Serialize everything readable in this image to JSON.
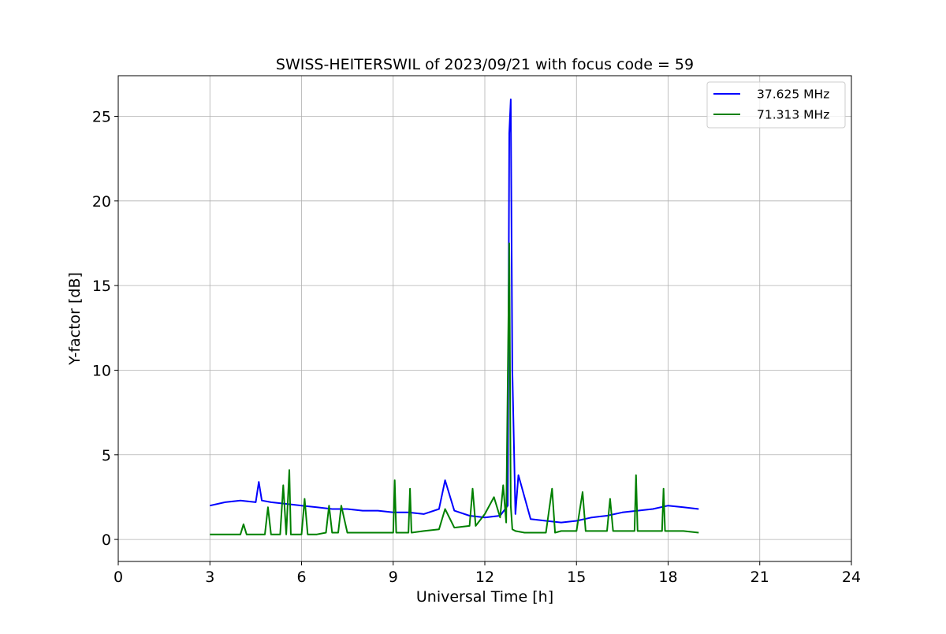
{
  "chart_data": {
    "type": "line",
    "title": "SWISS-HEITERSWIL of 2023/09/21 with focus code = 59",
    "xlabel": "Universal Time [h]",
    "ylabel": "Y-factor [dB]",
    "xlim": [
      0,
      24
    ],
    "ylim": [
      -1.3,
      27.4
    ],
    "xticks": [
      0,
      3,
      6,
      9,
      12,
      15,
      18,
      21,
      24
    ],
    "yticks": [
      0,
      5,
      10,
      15,
      20,
      25
    ],
    "grid": true,
    "legend_position": "top-right",
    "series": [
      {
        "name": "37.625 MHz",
        "color": "#0000ff",
        "x": [
          3.0,
          3.5,
          4.0,
          4.5,
          4.6,
          4.7,
          5.0,
          5.5,
          6.0,
          6.5,
          7.0,
          7.5,
          8.0,
          8.5,
          9.0,
          9.5,
          10.0,
          10.5,
          10.7,
          11.0,
          11.5,
          12.0,
          12.5,
          12.75,
          12.8,
          12.85,
          12.9,
          13.0,
          13.1,
          13.5,
          14.0,
          14.5,
          15.0,
          15.5,
          16.0,
          16.5,
          17.0,
          17.5,
          18.0,
          18.5,
          19.0
        ],
        "y": [
          2.0,
          2.2,
          2.3,
          2.2,
          3.4,
          2.3,
          2.2,
          2.1,
          2.0,
          1.9,
          1.8,
          1.8,
          1.7,
          1.7,
          1.6,
          1.6,
          1.5,
          1.8,
          3.5,
          1.7,
          1.4,
          1.3,
          1.4,
          2.0,
          24.0,
          26.0,
          10.0,
          1.5,
          3.8,
          1.2,
          1.1,
          1.0,
          1.1,
          1.3,
          1.4,
          1.6,
          1.7,
          1.8,
          2.0,
          1.9,
          1.8
        ]
      },
      {
        "name": "71.313 MHz",
        "color": "#008000",
        "x": [
          3.0,
          3.5,
          4.0,
          4.1,
          4.2,
          4.5,
          4.8,
          4.9,
          5.0,
          5.3,
          5.4,
          5.5,
          5.6,
          5.65,
          5.7,
          6.0,
          6.1,
          6.2,
          6.5,
          6.8,
          6.9,
          7.0,
          7.2,
          7.3,
          7.5,
          8.0,
          8.5,
          9.0,
          9.05,
          9.1,
          9.5,
          9.55,
          9.6,
          10.0,
          10.5,
          10.7,
          11.0,
          11.5,
          11.6,
          11.7,
          12.0,
          12.3,
          12.5,
          12.6,
          12.7,
          12.8,
          12.85,
          12.9,
          13.0,
          13.3,
          13.5,
          13.8,
          14.0,
          14.2,
          14.3,
          14.5,
          15.0,
          15.2,
          15.3,
          15.5,
          16.0,
          16.1,
          16.2,
          16.5,
          16.9,
          16.95,
          17.0,
          17.5,
          17.8,
          17.85,
          17.9,
          18.5,
          19.0
        ],
        "y": [
          0.3,
          0.3,
          0.3,
          0.9,
          0.3,
          0.3,
          0.3,
          1.9,
          0.3,
          0.3,
          3.2,
          0.3,
          4.1,
          0.3,
          0.3,
          0.3,
          2.4,
          0.3,
          0.3,
          0.4,
          2.0,
          0.4,
          0.4,
          2.0,
          0.4,
          0.4,
          0.4,
          0.4,
          3.5,
          0.4,
          0.4,
          3.0,
          0.4,
          0.5,
          0.6,
          1.8,
          0.7,
          0.8,
          3.0,
          0.8,
          1.5,
          2.5,
          1.3,
          3.2,
          1.0,
          17.5,
          2.0,
          0.6,
          0.5,
          0.4,
          0.4,
          0.4,
          0.4,
          3.0,
          0.4,
          0.5,
          0.5,
          2.8,
          0.5,
          0.5,
          0.5,
          2.4,
          0.5,
          0.5,
          0.5,
          3.8,
          0.5,
          0.5,
          0.5,
          3.0,
          0.5,
          0.5,
          0.4
        ]
      }
    ]
  }
}
